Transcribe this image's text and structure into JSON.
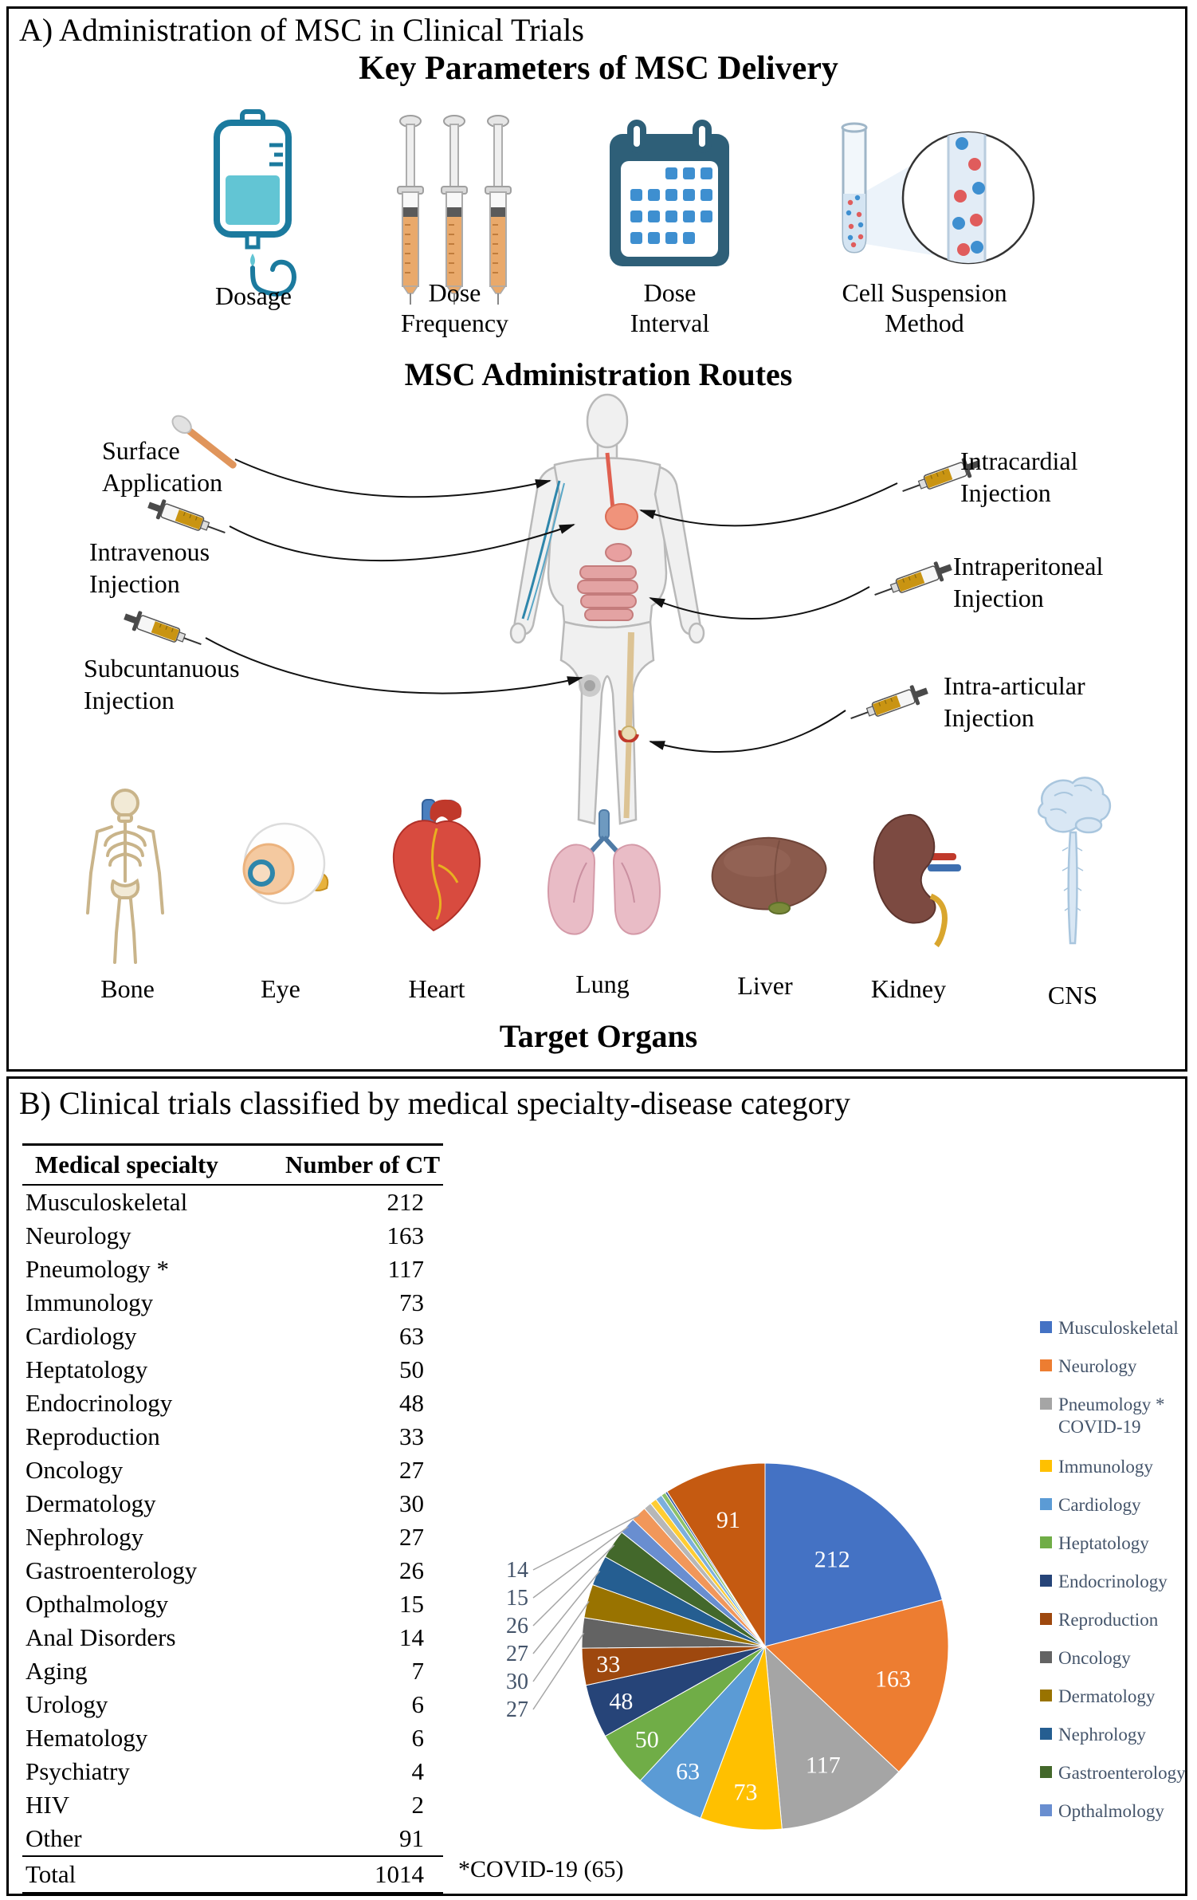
{
  "panel_a": {
    "title": "A) Administration of MSC in Clinical Trials",
    "key_parameters": {
      "heading": "Key Parameters of MSC Delivery",
      "items": [
        {
          "label": "Dosage",
          "icon": "iv-bag-icon"
        },
        {
          "label": "Dose\nFrequency",
          "icon": "syringes-icon"
        },
        {
          "label": "Dose\nInterval",
          "icon": "calendar-icon"
        },
        {
          "label": "Cell Suspension\nMethod",
          "icon": "cell-suspension-icon"
        }
      ]
    },
    "routes": {
      "heading": "MSC Administration Routes",
      "left_labels": [
        "Surface\nApplication",
        "Intravenous\nInjection",
        "Subcuntanuous\nInjection"
      ],
      "right_labels": [
        "Intracardial\nInjection",
        "Intraperitoneal\nInjection",
        "Intra-articular\nInjection"
      ]
    },
    "target_organs": {
      "heading": "Target Organs",
      "labels": [
        "Bone",
        "Eye",
        "Heart",
        "Lung",
        "Liver",
        "Kidney",
        "CNS"
      ]
    }
  },
  "panel_b": {
    "title": "B) Clinical trials classified by medical specialty-disease category",
    "table": {
      "col_headers": [
        "Medical specialty",
        "Number of CT"
      ],
      "rows": [
        [
          "Musculoskeletal",
          "212"
        ],
        [
          "Neurology",
          "163"
        ],
        [
          "Pneumology  *",
          "117"
        ],
        [
          "Immunology",
          "73"
        ],
        [
          "Cardiology",
          "63"
        ],
        [
          "Heptatology",
          "50"
        ],
        [
          "Endocrinology",
          "48"
        ],
        [
          "Reproduction",
          "33"
        ],
        [
          "Oncology",
          "27"
        ],
        [
          "Dermatology",
          "30"
        ],
        [
          "Nephrology",
          "27"
        ],
        [
          "Gastroenterology",
          "26"
        ],
        [
          "Opthalmology",
          "15"
        ],
        [
          "Anal Disorders",
          "14"
        ],
        [
          "Aging",
          "7"
        ],
        [
          "Urology",
          "6"
        ],
        [
          "Hematology",
          "6"
        ],
        [
          "Psychiatry",
          "4"
        ],
        [
          "HIV",
          "2"
        ],
        [
          "Other",
          "91"
        ]
      ],
      "total_row": [
        "Total",
        "1014"
      ]
    },
    "footnote": "*COVID-19 (65)"
  },
  "chart_data": {
    "type": "pie",
    "title": "Clinical trials classified by medical specialty-disease category",
    "total": 1014,
    "legend_position": "right",
    "inside_label_color": "#FFFFFF",
    "callout_label_color": "#44546A",
    "slices": [
      {
        "label": "Musculoskeletal",
        "value": 212,
        "color": "#4472C4",
        "label_mode": "inside"
      },
      {
        "label": "Neurology",
        "value": 163,
        "color": "#ED7D31",
        "label_mode": "inside"
      },
      {
        "label": "Pneumology * COVID-19",
        "value": 117,
        "color": "#A5A5A5",
        "label_mode": "inside"
      },
      {
        "label": "Immunology",
        "value": 73,
        "color": "#FFC000",
        "label_mode": "inside"
      },
      {
        "label": "Cardiology",
        "value": 63,
        "color": "#5B9BD5",
        "label_mode": "inside"
      },
      {
        "label": "Heptatology",
        "value": 50,
        "color": "#70AD47",
        "label_mode": "inside"
      },
      {
        "label": "Endocrinology",
        "value": 48,
        "color": "#264478",
        "label_mode": "inside"
      },
      {
        "label": "Reproduction",
        "value": 33,
        "color": "#9E480E",
        "label_mode": "inside"
      },
      {
        "label": "Oncology",
        "value": 27,
        "color": "#636363",
        "label_mode": "callout"
      },
      {
        "label": "Dermatology",
        "value": 30,
        "color": "#997300",
        "label_mode": "callout"
      },
      {
        "label": "Nephrology",
        "value": 27,
        "color": "#255E91",
        "label_mode": "callout"
      },
      {
        "label": "Gastroenterology",
        "value": 26,
        "color": "#43682B",
        "label_mode": "callout"
      },
      {
        "label": "Opthalmology",
        "value": 15,
        "color": "#698ED0",
        "label_mode": "callout"
      },
      {
        "label": "Anal Disorders",
        "value": 14,
        "color": "#F1975A",
        "label_mode": "callout"
      },
      {
        "label": "Aging",
        "value": 7,
        "color": "#B7B7B7",
        "label_mode": "none"
      },
      {
        "label": "Urology",
        "value": 6,
        "color": "#FFCD33",
        "label_mode": "none"
      },
      {
        "label": "Hematology",
        "value": 6,
        "color": "#7CAFDD",
        "label_mode": "none"
      },
      {
        "label": "Psychiatry",
        "value": 4,
        "color": "#8CC168",
        "label_mode": "none"
      },
      {
        "label": "HIV",
        "value": 2,
        "color": "#335AA1",
        "label_mode": "none"
      },
      {
        "label": "Other",
        "value": 91,
        "color": "#C55A11",
        "label_mode": "inside"
      }
    ],
    "legend": [
      {
        "label": "Musculoskeletal",
        "color": "#4472C4"
      },
      {
        "label": "Neurology",
        "color": "#ED7D31"
      },
      {
        "label": "Pneumology *\nCOVID-19",
        "color": "#A5A5A5"
      },
      {
        "label": "Immunology",
        "color": "#FFC000"
      },
      {
        "label": "Cardiology",
        "color": "#5B9BD5"
      },
      {
        "label": "Heptatology",
        "color": "#70AD47"
      },
      {
        "label": "Endocrinology",
        "color": "#264478"
      },
      {
        "label": "Reproduction",
        "color": "#9E480E"
      },
      {
        "label": "Oncology",
        "color": "#636363"
      },
      {
        "label": "Dermatology",
        "color": "#997300"
      },
      {
        "label": "Nephrology",
        "color": "#255E91"
      },
      {
        "label": "Gastroenterology",
        "color": "#43682B"
      },
      {
        "label": "Opthalmology",
        "color": "#698ED0"
      }
    ]
  }
}
